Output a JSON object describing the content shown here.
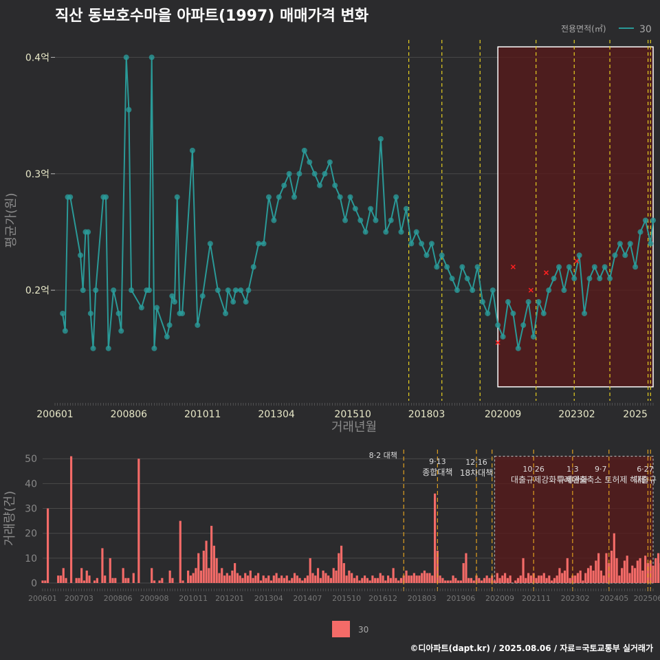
{
  "title": "직산 동보호수마을 아파트(1997) 매매가격 변화",
  "footer": "©디아파트(dapt.kr) / 2025.08.06 / 자료=국토교통부 실거래가",
  "colors": {
    "background": "#2b2b2d",
    "line": "#2a9a98",
    "bar": "#f46b68",
    "policy_line": "#e8d020",
    "policy_line_bottom": "#e0a020",
    "highlight_fill": "#5a1a1a",
    "grid": "#4a4a4a"
  },
  "chart_data": [
    {
      "type": "line",
      "subtype": "line+scatter",
      "title": "직산 동보호수마을 아파트(1997) 매매가격 변화",
      "xlabel": "거래년월",
      "ylabel": "평균가(원)",
      "ylim": [
        0.105,
        0.415
      ],
      "yticks": [
        0.2,
        0.3,
        0.4
      ],
      "ytick_labels": [
        "0.2억",
        "0.3억",
        "0.4억"
      ],
      "x_range": [
        "2006-01",
        "2025-08"
      ],
      "xtick_labels": [
        "200601",
        "200806",
        "201011",
        "201304",
        "201510",
        "201803",
        "202009",
        "202302",
        "2025"
      ],
      "legend": {
        "title": "전용면적(㎡)",
        "position": "top-right",
        "entries": [
          "30"
        ]
      },
      "grid": true,
      "policy_lines": [
        "2017-08",
        "2018-09",
        "2019-12",
        "2021-10",
        "2023-01",
        "2024-03",
        "2025-06",
        "2025-07"
      ],
      "highlight": {
        "from": "2020-07",
        "to": "2025-08",
        "ymin": 0.117,
        "ymax": 0.409
      },
      "series": [
        {
          "name": "30",
          "points": [
            [
              "2006-04",
              0.18
            ],
            [
              "2006-05",
              0.165
            ],
            [
              "2006-06",
              0.28
            ],
            [
              "2006-07",
              0.28
            ],
            [
              "2006-11",
              0.23
            ],
            [
              "2006-12",
              0.2
            ],
            [
              "2007-01",
              0.25
            ],
            [
              "2007-02",
              0.25
            ],
            [
              "2007-03",
              0.18
            ],
            [
              "2007-04",
              0.15
            ],
            [
              "2007-05",
              0.2
            ],
            [
              "2007-08",
              0.28
            ],
            [
              "2007-09",
              0.28
            ],
            [
              "2007-10",
              0.15
            ],
            [
              "2007-12",
              0.2
            ],
            [
              "2008-02",
              0.18
            ],
            [
              "2008-03",
              0.165
            ],
            [
              "2008-05",
              0.4
            ],
            [
              "2008-06",
              0.355
            ],
            [
              "2008-07",
              0.2
            ],
            [
              "2008-11",
              0.185
            ],
            [
              "2009-01",
              0.2
            ],
            [
              "2009-02",
              0.2
            ],
            [
              "2009-03",
              0.4
            ],
            [
              "2009-04",
              0.15
            ],
            [
              "2009-05",
              0.185
            ],
            [
              "2009-09",
              0.16
            ],
            [
              "2009-10",
              0.17
            ],
            [
              "2009-11",
              0.195
            ],
            [
              "2009-12",
              0.19
            ],
            [
              "2010-01",
              0.28
            ],
            [
              "2010-02",
              0.18
            ],
            [
              "2010-03",
              0.18
            ],
            [
              "2010-07",
              0.32
            ],
            [
              "2010-09",
              0.17
            ],
            [
              "2010-11",
              0.195
            ],
            [
              "2011-02",
              0.24
            ],
            [
              "2011-05",
              0.2
            ],
            [
              "2011-08",
              0.18
            ],
            [
              "2011-09",
              0.2
            ],
            [
              "2011-11",
              0.19
            ],
            [
              "2011-12",
              0.2
            ],
            [
              "2012-02",
              0.2
            ],
            [
              "2012-04",
              0.19
            ],
            [
              "2012-05",
              0.2
            ],
            [
              "2012-07",
              0.22
            ],
            [
              "2012-09",
              0.24
            ],
            [
              "2012-11",
              0.24
            ],
            [
              "2013-01",
              0.28
            ],
            [
              "2013-03",
              0.26
            ],
            [
              "2013-05",
              0.28
            ],
            [
              "2013-07",
              0.29
            ],
            [
              "2013-09",
              0.3
            ],
            [
              "2013-11",
              0.28
            ],
            [
              "2014-01",
              0.3
            ],
            [
              "2014-03",
              0.32
            ],
            [
              "2014-05",
              0.31
            ],
            [
              "2014-07",
              0.3
            ],
            [
              "2014-09",
              0.29
            ],
            [
              "2014-11",
              0.3
            ],
            [
              "2015-01",
              0.31
            ],
            [
              "2015-03",
              0.29
            ],
            [
              "2015-05",
              0.28
            ],
            [
              "2015-07",
              0.26
            ],
            [
              "2015-09",
              0.28
            ],
            [
              "2015-11",
              0.27
            ],
            [
              "2016-01",
              0.26
            ],
            [
              "2016-03",
              0.25
            ],
            [
              "2016-05",
              0.27
            ],
            [
              "2016-07",
              0.26
            ],
            [
              "2016-09",
              0.33
            ],
            [
              "2016-11",
              0.25
            ],
            [
              "2017-01",
              0.26
            ],
            [
              "2017-03",
              0.28
            ],
            [
              "2017-05",
              0.25
            ],
            [
              "2017-07",
              0.27
            ],
            [
              "2017-09",
              0.24
            ],
            [
              "2017-11",
              0.25
            ],
            [
              "2018-01",
              0.24
            ],
            [
              "2018-03",
              0.23
            ],
            [
              "2018-05",
              0.24
            ],
            [
              "2018-07",
              0.22
            ],
            [
              "2018-09",
              0.23
            ],
            [
              "2018-11",
              0.22
            ],
            [
              "2019-01",
              0.21
            ],
            [
              "2019-03",
              0.2
            ],
            [
              "2019-05",
              0.22
            ],
            [
              "2019-07",
              0.21
            ],
            [
              "2019-09",
              0.2
            ],
            [
              "2019-11",
              0.22
            ],
            [
              "2020-01",
              0.19
            ],
            [
              "2020-03",
              0.18
            ],
            [
              "2020-05",
              0.2
            ],
            [
              "2020-07",
              0.17
            ],
            [
              "2020-09",
              0.16
            ],
            [
              "2020-11",
              0.19
            ],
            [
              "2021-01",
              0.18
            ],
            [
              "2021-03",
              0.15
            ],
            [
              "2021-05",
              0.17
            ],
            [
              "2021-07",
              0.19
            ],
            [
              "2021-09",
              0.16
            ],
            [
              "2021-11",
              0.19
            ],
            [
              "2022-01",
              0.18
            ],
            [
              "2022-03",
              0.2
            ],
            [
              "2022-05",
              0.21
            ],
            [
              "2022-07",
              0.22
            ],
            [
              "2022-09",
              0.2
            ],
            [
              "2022-11",
              0.22
            ],
            [
              "2023-01",
              0.21
            ],
            [
              "2023-03",
              0.23
            ],
            [
              "2023-05",
              0.18
            ],
            [
              "2023-07",
              0.21
            ],
            [
              "2023-09",
              0.22
            ],
            [
              "2023-11",
              0.21
            ],
            [
              "2024-01",
              0.22
            ],
            [
              "2024-03",
              0.21
            ],
            [
              "2024-05",
              0.23
            ],
            [
              "2024-07",
              0.24
            ],
            [
              "2024-09",
              0.23
            ],
            [
              "2024-11",
              0.24
            ],
            [
              "2025-01",
              0.22
            ],
            [
              "2025-03",
              0.25
            ],
            [
              "2025-05",
              0.26
            ],
            [
              "2025-07",
              0.24
            ],
            [
              "2025-08",
              0.26
            ]
          ]
        }
      ],
      "cancelled_markers": [
        [
          "2020-07",
          0.155
        ],
        [
          "2021-01",
          0.22
        ],
        [
          "2021-08",
          0.2
        ],
        [
          "2022-02",
          0.215
        ],
        [
          "2023-02",
          0.225
        ]
      ]
    },
    {
      "type": "bar",
      "ylabel": "거래량(건)",
      "ylim": [
        0,
        52
      ],
      "yticks": [
        0,
        10,
        20,
        30,
        40,
        50
      ],
      "xtick_labels": [
        "200601",
        "200703",
        "200806",
        "200908",
        "201011",
        "201201",
        "201304",
        "201407",
        "201510",
        "201612",
        "201803",
        "201906",
        "202009",
        "202111",
        "202302",
        "202405",
        "202506"
      ],
      "legend": {
        "position": "bottom",
        "entries": [
          "30"
        ]
      },
      "policy_lines": [
        "2017-08",
        "2018-09",
        "2019-12",
        "2020-06",
        "2021-10",
        "2023-01",
        "2024-03",
        "2025-06",
        "2025-07"
      ],
      "highlight": {
        "from": "2020-07",
        "to": "2025-08",
        "ymin": 0,
        "ymax": 51
      },
      "annotations": [
        {
          "date": "2017-08",
          "lines": [
            "8·2 대책"
          ]
        },
        {
          "date": "2018-09",
          "lines": [
            "9·13",
            "종합대책"
          ]
        },
        {
          "date": "2019-12",
          "lines": [
            "12·16",
            "18차대책"
          ]
        },
        {
          "date": "2021-10",
          "lines": [
            "10·26",
            "대출규제강화"
          ]
        },
        {
          "date": "2023-01",
          "lines": [
            "1·3",
            "규제완화"
          ]
        },
        {
          "date": "2024-03",
          "lines": [
            "9·7",
            "특례대출축소 토허제 해제"
          ]
        },
        {
          "date": "2025-06",
          "lines": [
            "6·27",
            "대출규"
          ]
        }
      ],
      "series": [
        {
          "name": "30",
          "values": [
            1,
            1,
            30,
            0,
            0,
            0,
            3,
            3,
            6,
            2,
            0,
            51,
            0,
            2,
            2,
            6,
            1,
            5,
            3,
            0,
            1,
            2,
            0,
            14,
            3,
            0,
            10,
            2,
            2,
            0,
            0,
            6,
            2,
            2,
            0,
            4,
            0,
            50,
            0,
            0,
            0,
            0,
            6,
            1,
            0,
            1,
            2,
            0,
            0,
            5,
            2,
            0,
            0,
            25,
            1,
            0,
            5,
            3,
            4,
            6,
            12,
            5,
            13,
            17,
            6,
            23,
            15,
            10,
            4,
            6,
            3,
            4,
            3,
            5,
            8,
            4,
            3,
            2,
            4,
            3,
            5,
            2,
            3,
            4,
            1,
            3,
            2,
            3,
            1,
            3,
            4,
            2,
            3,
            2,
            3,
            1,
            2,
            4,
            3,
            2,
            1,
            2,
            3,
            10,
            4,
            3,
            6,
            2,
            5,
            4,
            3,
            2,
            6,
            5,
            12,
            15,
            8,
            3,
            5,
            4,
            2,
            3,
            1,
            2,
            3,
            2,
            1,
            3,
            2,
            2,
            4,
            3,
            1,
            3,
            2,
            6,
            2,
            1,
            2,
            3,
            5,
            3,
            3,
            4,
            3,
            3,
            4,
            5,
            4,
            4,
            3,
            36,
            13,
            3,
            2,
            1,
            1,
            1,
            3,
            2,
            1,
            1,
            8,
            12,
            2,
            2,
            1,
            3,
            2,
            1,
            2,
            3,
            2,
            3,
            1,
            4,
            2,
            3,
            4,
            2,
            3,
            0,
            1,
            2,
            3,
            10,
            2,
            4,
            3,
            4,
            2,
            3,
            3,
            4,
            2,
            3,
            1,
            2,
            3,
            6,
            4,
            5,
            10,
            2,
            3,
            3,
            4,
            5,
            1,
            4,
            6,
            7,
            5,
            9,
            12,
            5,
            3,
            12,
            8,
            13,
            20,
            10,
            3,
            6,
            9,
            11,
            4,
            7,
            6,
            9,
            10,
            5,
            11,
            8,
            9,
            7,
            10,
            12,
            8,
            15,
            7,
            16,
            8,
            12,
            4,
            6,
            8,
            3,
            2,
            6,
            5,
            4
          ]
        }
      ]
    }
  ]
}
